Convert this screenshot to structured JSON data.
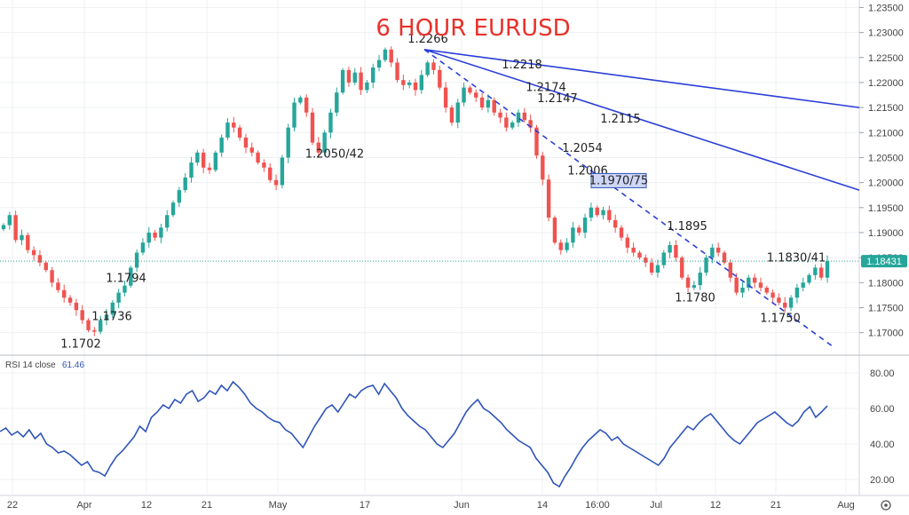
{
  "chart_data": [
    {
      "type": "candlestick",
      "title": "6 HOUR EURUSD",
      "colors": {
        "up": "#26a69a",
        "down": "#ef5350",
        "trendline": "#2b3fd6",
        "rsi": "#2e54b8",
        "last_price_bg": "#26a69a"
      },
      "x_ticks": [
        "22",
        "Apr",
        "12",
        "21",
        "May",
        "17",
        "Jun",
        "14",
        "16:00",
        "Jul",
        "12",
        "21",
        "Aug"
      ],
      "y_ticks": [
        "1.23500",
        "1.23000",
        "1.22500",
        "1.22000",
        "1.21500",
        "1.21000",
        "1.20500",
        "1.20000",
        "1.19500",
        "1.19000",
        "1.18500",
        "1.18000",
        "1.17500",
        "1.17000"
      ],
      "ylim": [
        1.1655,
        1.2365
      ],
      "last_price": "1.18431",
      "last_price_value": 1.1843,
      "price_path": [
        [
          "22",
          1.1915
        ],
        [
          "22",
          1.1935
        ],
        [
          "22",
          1.1885
        ],
        [
          "22",
          1.1895
        ],
        [
          "22",
          1.1865
        ],
        [
          "22",
          1.1855
        ],
        [
          "22",
          1.184
        ],
        [
          "22",
          1.1825
        ],
        [
          "22",
          1.18
        ],
        [
          "22",
          1.1785
        ],
        [
          "22",
          1.177
        ],
        [
          "22",
          1.176
        ],
        [
          "22",
          1.1745
        ],
        [
          "22",
          1.1725
        ],
        [
          "22",
          1.1705
        ],
        [
          "22",
          1.1702
        ],
        [
          "Apr",
          1.1725
        ],
        [
          "Apr",
          1.1736
        ],
        [
          "Apr",
          1.176
        ],
        [
          "Apr",
          1.178
        ],
        [
          "Apr",
          1.1794
        ],
        [
          "Apr",
          1.183
        ],
        [
          "Apr",
          1.186
        ],
        [
          "Apr",
          1.188
        ],
        [
          "Apr",
          1.19
        ],
        [
          "Apr",
          1.189
        ],
        [
          "12",
          1.191
        ],
        [
          "12",
          1.1935
        ],
        [
          "12",
          1.196
        ],
        [
          "12",
          1.1985
        ],
        [
          "12",
          1.201
        ],
        [
          "12",
          1.204
        ],
        [
          "12",
          1.206
        ],
        [
          "12",
          1.203
        ],
        [
          "21",
          1.2025
        ],
        [
          "21",
          1.206
        ],
        [
          "21",
          1.209
        ],
        [
          "21",
          1.212
        ],
        [
          "21",
          1.211
        ],
        [
          "21",
          1.209
        ],
        [
          "21",
          1.207
        ],
        [
          "21",
          1.206
        ],
        [
          "May",
          1.204
        ],
        [
          "May",
          1.203
        ],
        [
          "May",
          1.2005
        ],
        [
          "May",
          1.1995
        ],
        [
          "May",
          1.205
        ],
        [
          "May",
          1.211
        ],
        [
          "May",
          1.216
        ],
        [
          "May",
          1.217
        ],
        [
          "May",
          1.214
        ],
        [
          "May",
          1.208
        ],
        [
          "May",
          1.206
        ],
        [
          "May",
          1.21
        ],
        [
          "May",
          1.214
        ],
        [
          "May",
          1.218
        ],
        [
          "17",
          1.2225
        ],
        [
          "17",
          1.22
        ],
        [
          "17",
          1.222
        ],
        [
          "17",
          1.2185
        ],
        [
          "17",
          1.22
        ],
        [
          "17",
          1.223
        ],
        [
          "17",
          1.2245
        ],
        [
          "17",
          1.2266
        ],
        [
          "17",
          1.224
        ],
        [
          "17",
          1.2205
        ],
        [
          "17",
          1.2195
        ],
        [
          "17",
          1.22
        ],
        [
          "17",
          1.2185
        ],
        [
          "Jun",
          1.2215
        ],
        [
          "Jun",
          1.224
        ],
        [
          "Jun",
          1.2225
        ],
        [
          "Jun",
          1.219
        ],
        [
          "Jun",
          1.215
        ],
        [
          "Jun",
          1.212
        ],
        [
          "Jun",
          1.216
        ],
        [
          "Jun",
          1.219
        ],
        [
          "Jun",
          1.218
        ],
        [
          "Jun",
          1.217
        ],
        [
          "Jun",
          1.215
        ],
        [
          "Jun",
          1.2165
        ],
        [
          "Jun",
          1.214
        ],
        [
          "Jun",
          1.213
        ],
        [
          "Jun",
          1.211
        ],
        [
          "14",
          1.212
        ],
        [
          "14",
          1.214
        ],
        [
          "14",
          1.2125
        ],
        [
          "14",
          1.211
        ],
        [
          "14",
          1.2054
        ],
        [
          "14",
          1.2006
        ],
        [
          "14",
          1.193
        ],
        [
          "14",
          1.188
        ],
        [
          "14",
          1.1865
        ],
        [
          "14",
          1.188
        ],
        [
          "14",
          1.191
        ],
        [
          "14",
          1.19
        ],
        [
          "16:00",
          1.193
        ],
        [
          "16:00",
          1.195
        ],
        [
          "16:00",
          1.1935
        ],
        [
          "16:00",
          1.1945
        ],
        [
          "16:00",
          1.1925
        ],
        [
          "16:00",
          1.191
        ],
        [
          "16:00",
          1.189
        ],
        [
          "16:00",
          1.187
        ],
        [
          "16:00",
          1.186
        ],
        [
          "16:00",
          1.185
        ],
        [
          "Jul",
          1.184
        ],
        [
          "Jul",
          1.182
        ],
        [
          "Jul",
          1.1835
        ],
        [
          "Jul",
          1.186
        ],
        [
          "Jul",
          1.1875
        ],
        [
          "Jul",
          1.185
        ],
        [
          "Jul",
          1.181
        ],
        [
          "Jul",
          1.179
        ],
        [
          "Jul",
          1.1795
        ],
        [
          "Jul",
          1.182
        ],
        [
          "12",
          1.185
        ],
        [
          "12",
          1.187
        ],
        [
          "12",
          1.186
        ],
        [
          "12",
          1.184
        ],
        [
          "12",
          1.181
        ],
        [
          "12",
          1.178
        ],
        [
          "12",
          1.179
        ],
        [
          "12",
          1.181
        ],
        [
          "12",
          1.18
        ],
        [
          "12",
          1.179
        ],
        [
          "21",
          1.178
        ],
        [
          "21",
          1.177
        ],
        [
          "21",
          1.176
        ],
        [
          "21",
          1.175
        ],
        [
          "21",
          1.177
        ],
        [
          "21",
          1.179
        ],
        [
          "21",
          1.18
        ],
        [
          "21",
          1.1815
        ],
        [
          "21",
          1.183
        ],
        [
          "21",
          1.181
        ],
        [
          "21",
          1.1843
        ]
      ],
      "trendlines": [
        {
          "style": "solid",
          "from": 1.2266,
          "to": 1.215
        },
        {
          "style": "solid",
          "from": 1.2266,
          "to": 1.1985
        },
        {
          "style": "dashed",
          "from": 1.2266,
          "to": 1.167
        }
      ],
      "annotations": [
        {
          "text": "1.2266",
          "value": 1.2266
        },
        {
          "text": "1.2218",
          "value": 1.2218
        },
        {
          "text": "1.2174",
          "value": 1.2174
        },
        {
          "text": "1.2147",
          "value": 1.2147
        },
        {
          "text": "1.2115",
          "value": 1.2115
        },
        {
          "text": "1.2054",
          "value": 1.2054
        },
        {
          "text": "1.2050/42",
          "value": 1.2046
        },
        {
          "text": "1.2006",
          "value": 1.2006
        },
        {
          "text": "1.1970/75",
          "value": 1.1972,
          "boxed": true
        },
        {
          "text": "1.1895",
          "value": 1.1895
        },
        {
          "text": "1.1830/41",
          "value": 1.1835
        },
        {
          "text": "1.1794",
          "value": 1.1794
        },
        {
          "text": "1.1780",
          "value": 1.178
        },
        {
          "text": "1.1750",
          "value": 1.175
        },
        {
          "text": "1.1736",
          "value": 1.1736
        },
        {
          "text": "1.1702",
          "value": 1.1702
        }
      ]
    },
    {
      "type": "line",
      "title": "RSI 14 close",
      "last_value": "61.46",
      "y_ticks": [
        "80.00",
        "60.00",
        "40.00",
        "20.00"
      ],
      "ylim": [
        12,
        88
      ],
      "values": [
        47,
        49,
        45,
        47,
        44,
        48,
        43,
        46,
        40,
        38,
        35,
        36,
        34,
        31,
        28,
        30,
        25,
        24,
        22,
        28,
        33,
        36,
        40,
        44,
        50,
        47,
        55,
        58,
        62,
        60,
        65,
        63,
        68,
        70,
        64,
        66,
        70,
        68,
        73,
        70,
        75,
        72,
        68,
        63,
        60,
        58,
        55,
        53,
        52,
        48,
        46,
        42,
        38,
        44,
        50,
        55,
        60,
        62,
        58,
        63,
        68,
        66,
        70,
        72,
        73,
        68,
        74,
        70,
        66,
        60,
        56,
        53,
        50,
        48,
        44,
        40,
        38,
        42,
        46,
        52,
        58,
        62,
        65,
        60,
        58,
        55,
        52,
        48,
        45,
        42,
        40,
        38,
        32,
        28,
        24,
        18,
        16,
        22,
        27,
        33,
        38,
        42,
        45,
        48,
        46,
        42,
        44,
        40,
        38,
        36,
        34,
        32,
        30,
        28,
        32,
        38,
        42,
        46,
        50,
        48,
        52,
        55,
        57,
        53,
        49,
        45,
        42,
        40,
        44,
        48,
        52,
        54,
        56,
        58,
        55,
        52,
        50,
        53,
        58,
        61,
        55,
        58,
        61.46
      ]
    }
  ]
}
